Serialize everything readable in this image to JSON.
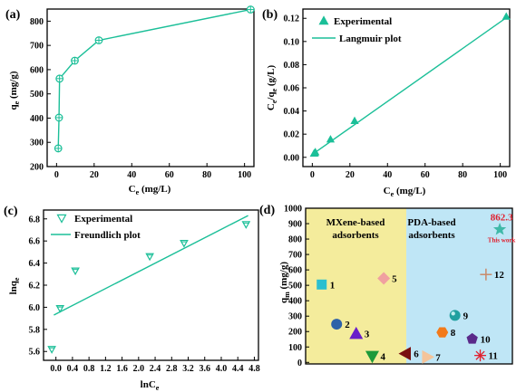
{
  "chart_data": [
    {
      "id": "a",
      "type": "line",
      "panel_label": "(a)",
      "xlabel": "Ce (mg/L)",
      "ylabel": "qe (mg/g)",
      "xlim": [
        -5,
        105
      ],
      "ylim": [
        200,
        850
      ],
      "xticks": [
        0,
        20,
        40,
        60,
        80,
        100
      ],
      "yticks": [
        200,
        300,
        400,
        500,
        600,
        700,
        800
      ],
      "color": "#1bbf98",
      "series": [
        {
          "x": [
            0.9,
            1.3,
            1.6,
            9.7,
            22.5,
            103.2
          ],
          "y": [
            275,
            402,
            563,
            637,
            721,
            848
          ]
        }
      ]
    },
    {
      "id": "b",
      "type": "scatter",
      "panel_label": "(b)",
      "xlabel": "Ce (mg/L)",
      "ylabel": "Ce/qe (g/L)",
      "xlim": [
        -5,
        105
      ],
      "ylim": [
        -0.008,
        0.128
      ],
      "xticks": [
        0,
        20,
        40,
        60,
        80,
        100
      ],
      "yticks": [
        0.0,
        0.02,
        0.04,
        0.06,
        0.08,
        0.1,
        0.12
      ],
      "color": "#1bbf98",
      "legend": [
        "Experimental",
        "Langmuir plot"
      ],
      "series": [
        {
          "x": [
            0.9,
            1.3,
            1.6,
            9.7,
            22.5,
            103.2
          ],
          "y": [
            0.0033,
            0.0036,
            0.0045,
            0.0155,
            0.0315,
            0.1215
          ]
        }
      ],
      "fit": {
        "x": [
          0,
          103.2
        ],
        "y": [
          0.0025,
          0.1205
        ]
      }
    },
    {
      "id": "c",
      "type": "scatter",
      "panel_label": "(c)",
      "xlabel": "lnCe",
      "ylabel": "lnqe",
      "xlim": [
        -0.3,
        4.9
      ],
      "ylim": [
        5.52,
        6.88
      ],
      "xticks": [
        0.0,
        0.4,
        0.8,
        1.2,
        1.6,
        2.0,
        2.4,
        2.8,
        3.2,
        3.6,
        4.0,
        4.4,
        4.8
      ],
      "yticks": [
        5.6,
        5.8,
        6.0,
        6.2,
        6.4,
        6.6,
        6.8
      ],
      "color": "#1bbf98",
      "legend": [
        "Experimental",
        "Freundlich plot"
      ],
      "series": [
        {
          "x": [
            -0.1,
            0.1,
            0.47,
            2.27,
            3.1,
            4.6
          ],
          "y": [
            5.62,
            5.99,
            6.33,
            6.46,
            6.58,
            6.75
          ]
        }
      ],
      "fit": {
        "x": [
          -0.05,
          4.65
        ],
        "y": [
          5.93,
          6.83
        ]
      }
    },
    {
      "id": "d",
      "type": "scatter",
      "panel_label": "(d)",
      "ylabel": "qm (mg/g)",
      "ylim": [
        -10,
        1000
      ],
      "yticks": [
        0,
        100,
        200,
        300,
        400,
        500,
        600,
        700,
        800,
        900,
        1000
      ],
      "regions": [
        {
          "label_line1": "MXene-based",
          "label_line2": "adsorbents",
          "color": "#f4ec9c"
        },
        {
          "label_line1": "PDA-based",
          "label_line2": "adsorbents",
          "color": "#bfe6f6"
        }
      ],
      "highlight": {
        "value": "862.3",
        "note": "This work",
        "color": "#e0202f"
      },
      "points": [
        {
          "label": "1",
          "x": 0.7,
          "y": 505,
          "shape": "square",
          "color": "#2bbfd0"
        },
        {
          "label": "2",
          "x": 1.35,
          "y": 248,
          "shape": "circle",
          "color": "#2e62a8"
        },
        {
          "label": "3",
          "x": 2.2,
          "y": 186,
          "shape": "triangle-up",
          "color": "#6a1fc9"
        },
        {
          "label": "4",
          "x": 2.9,
          "y": 40,
          "shape": "triangle-down",
          "color": "#1d9a3a"
        },
        {
          "label": "5",
          "x": 3.4,
          "y": 545,
          "shape": "diamond",
          "color": "#f0a0a0"
        },
        {
          "label": "6",
          "x": 4.35,
          "y": 57,
          "shape": "triangle-left",
          "color": "#7a1010"
        },
        {
          "label": "7",
          "x": 5.3,
          "y": 35,
          "shape": "triangle-right",
          "color": "#f4c49a"
        },
        {
          "label": "8",
          "x": 5.95,
          "y": 195,
          "shape": "hexagon",
          "color": "#f27a1a"
        },
        {
          "label": "9",
          "x": 6.5,
          "y": 305,
          "shape": "sphere",
          "color": "#20a0a0"
        },
        {
          "label": "10",
          "x": 7.25,
          "y": 152,
          "shape": "pentagon",
          "color": "#5a2a8a"
        },
        {
          "label": "11",
          "x": 7.6,
          "y": 45,
          "shape": "asterisk",
          "color": "#e0202f"
        },
        {
          "label": "12",
          "x": 7.85,
          "y": 570,
          "shape": "plus",
          "color": "#c98a6a"
        },
        {
          "label": "",
          "x": 8.45,
          "y": 862.3,
          "shape": "star",
          "color": "#3fb9a8"
        }
      ]
    }
  ]
}
